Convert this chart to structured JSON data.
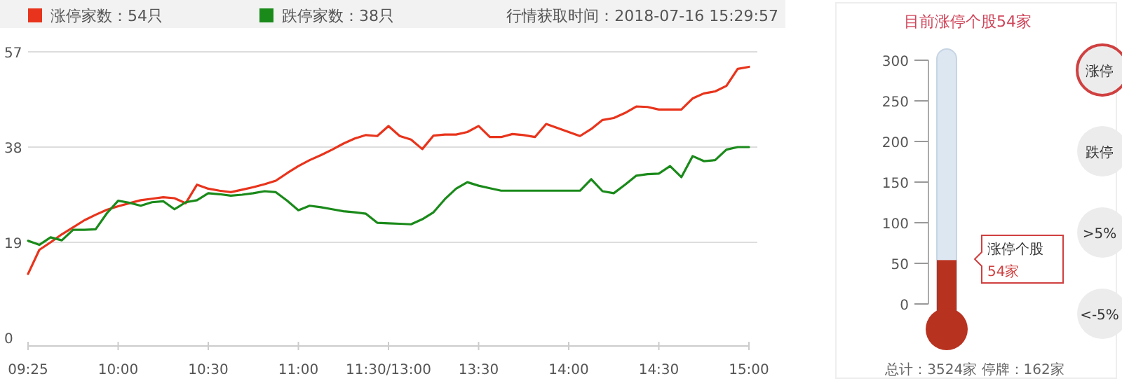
{
  "chart_data": [
    {
      "type": "line",
      "legend": "top left",
      "grid": "y",
      "categories": [
        "09:25",
        null,
        null,
        null,
        null,
        null,
        null,
        null,
        "10:00",
        null,
        null,
        null,
        null,
        null,
        null,
        null,
        "10:30",
        null,
        null,
        null,
        null,
        null,
        null,
        null,
        "11:00",
        null,
        null,
        null,
        null,
        null,
        null,
        null,
        "11:30/13:00",
        null,
        null,
        null,
        null,
        null,
        null,
        null,
        "13:30",
        null,
        null,
        null,
        null,
        null,
        null,
        null,
        "14:00",
        null,
        null,
        null,
        null,
        null,
        null,
        null,
        "14:30",
        null,
        null,
        null,
        null,
        null,
        null,
        null,
        "15:00"
      ],
      "ylim": [
        0,
        57
      ],
      "yticks": [
        0,
        19,
        38,
        57
      ],
      "annotations": [
        "行情获取时间：2018-07-16 15:29:57"
      ],
      "series": [
        {
          "name": "涨停家数：54只",
          "color": "#e8341c",
          "values": [
            12.7,
            17.5,
            19,
            20.6,
            22,
            23.4,
            24.5,
            25.5,
            26.2,
            26.8,
            27.4,
            27.7,
            28,
            27.8,
            26.8,
            30.5,
            29.7,
            29.3,
            29,
            29.5,
            30,
            30.6,
            31.3,
            32.8,
            34.2,
            35.4,
            36.4,
            37.5,
            38.7,
            39.7,
            40.4,
            40.2,
            42.2,
            40.2,
            39.5,
            37.6,
            40.3,
            40.5,
            40.5,
            41,
            42.2,
            40,
            40,
            40.6,
            40.4,
            40,
            42.6,
            41.8,
            41,
            40.2,
            41.6,
            43.4,
            43.8,
            44.8,
            46.1,
            46,
            45.5,
            45.5,
            45.5,
            47.7,
            48.7,
            49.1,
            50.2,
            53.6,
            54
          ]
        },
        {
          "name": "跌停家数：38只",
          "color": "#1a8a1a",
          "values": [
            19.3,
            18.5,
            20,
            19.4,
            21.5,
            21.5,
            21.6,
            24.8,
            27.3,
            26.9,
            26.3,
            27,
            27.2,
            25.6,
            27,
            27.4,
            28.8,
            28.6,
            28.3,
            28.5,
            28.8,
            29.2,
            29,
            27.3,
            25.4,
            26.3,
            26,
            25.6,
            25.2,
            25,
            24.7,
            22.9,
            22.8,
            22.7,
            22.6,
            23.6,
            25,
            27.6,
            29.7,
            31,
            30.3,
            29.8,
            29.3,
            29.3,
            29.3,
            29.3,
            29.3,
            29.3,
            29.3,
            29.3,
            31.6,
            29.2,
            28.8,
            30.5,
            32.3,
            32.6,
            32.7,
            34.2,
            32,
            36.2,
            35.2,
            35.4,
            37.5,
            38,
            38
          ]
        }
      ]
    },
    {
      "type": "bar",
      "title": "目前涨停个股54家",
      "categories": [
        null
      ],
      "values": [
        54
      ],
      "color": "#b83220",
      "ylim": [
        0,
        300
      ],
      "yticks": [
        0,
        50,
        100,
        150,
        200,
        250,
        300
      ],
      "annotations": [
        "涨停个股",
        "54家",
        "涨停",
        "跌停",
        ">5%",
        "<-5%",
        "总计：3524家 停牌：162家"
      ]
    }
  ]
}
